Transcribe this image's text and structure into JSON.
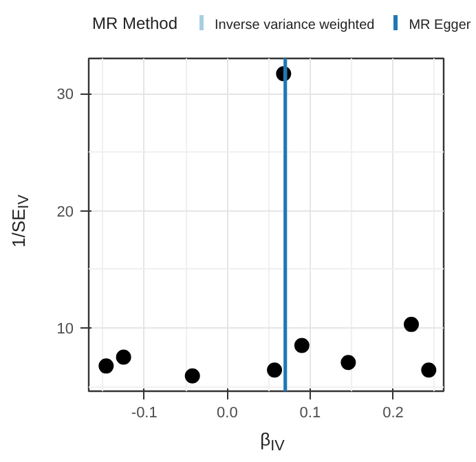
{
  "chart_data": {
    "type": "scatter",
    "xlabel": "β$_{IV}$",
    "ylabel": "1/SE$_{IV}$",
    "legend_title": "MR Method",
    "x": [
      -0.146,
      -0.125,
      -0.042,
      0.057,
      0.068,
      0.09,
      0.146,
      0.222,
      0.243
    ],
    "series": [
      {
        "color": "#000000",
        "values": [
          6.75,
          7.5,
          5.9,
          6.4,
          31.7,
          8.5,
          7.05,
          10.3,
          6.4
        ]
      }
    ],
    "marker": "circle",
    "xlim": [
      -0.167,
      0.261
    ],
    "ylim": [
      4.6,
      33
    ],
    "xticks": [
      {
        "value": -0.1,
        "label": "-0.1"
      },
      {
        "value": 0.0,
        "label": "0.0"
      },
      0.1,
      0.2
    ],
    "yticks": [
      10,
      20,
      30
    ],
    "ref_lines": [
      {
        "axis": "x",
        "value": 0.07,
        "label": "Inverse variance weighted",
        "color": "#a6cee3"
      },
      {
        "axis": "x",
        "value": 0.07,
        "label": "MR Egger",
        "color": "#1f78b4"
      }
    ],
    "grid": true,
    "legend": "top"
  }
}
